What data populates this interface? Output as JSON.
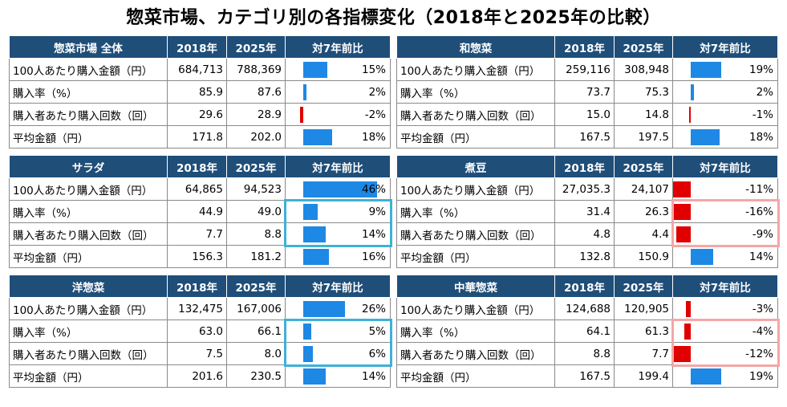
{
  "title": "惣菜市場、カテゴリ別の各指標変化（2018年と2025年の比較）",
  "colors": {
    "header_bg": "#1f4e79",
    "positive_bar": "#1e88e5",
    "negative_bar": "#e00000",
    "highlight_blue": "#3fb1d6",
    "highlight_red": "#f4a6a6"
  },
  "panels": [
    {
      "id": "total",
      "header": [
        "惣菜市場 全体",
        "2018年",
        "2025年",
        "対7年前比"
      ],
      "rows": [
        {
          "label": "100人あたり購入金額（円）",
          "v2018": "684,713",
          "v2025": "788,369",
          "change": "15%",
          "change_value": 15
        },
        {
          "label": "購入率（%）",
          "v2018": "85.9",
          "v2025": "87.6",
          "change": "2%",
          "change_value": 2
        },
        {
          "label": "購入者あたり購入回数（回）",
          "v2018": "29.6",
          "v2025": "28.9",
          "change": "-2%",
          "change_value": -2
        },
        {
          "label": "平均金額（円）",
          "v2018": "171.8",
          "v2025": "202.0",
          "change": "18%",
          "change_value": 18
        }
      ]
    },
    {
      "id": "wasozai",
      "header": [
        "和惣菜",
        "2018年",
        "2025年",
        "対7年前比"
      ],
      "rows": [
        {
          "label": "100人あたり購入金額（円）",
          "v2018": "259,116",
          "v2025": "308,948",
          "change": "19%",
          "change_value": 19
        },
        {
          "label": "購入率（%）",
          "v2018": "73.7",
          "v2025": "75.3",
          "change": "2%",
          "change_value": 2
        },
        {
          "label": "購入者あたり購入回数（回）",
          "v2018": "15.0",
          "v2025": "14.8",
          "change": "-1%",
          "change_value": -1
        },
        {
          "label": "平均金額（円）",
          "v2018": "167.5",
          "v2025": "197.5",
          "change": "18%",
          "change_value": 18
        }
      ]
    },
    {
      "id": "salad",
      "header": [
        "サラダ",
        "2018年",
        "2025年",
        "対7年前比"
      ],
      "highlight_rows": [
        1,
        2
      ],
      "highlight_color": "blue",
      "rows": [
        {
          "label": "100人あたり購入金額（円）",
          "v2018": "64,865",
          "v2025": "94,523",
          "change": "46%",
          "change_value": 46
        },
        {
          "label": "購入率（%）",
          "v2018": "44.9",
          "v2025": "49.0",
          "change": "9%",
          "change_value": 9
        },
        {
          "label": "購入者あたり購入回数（回）",
          "v2018": "7.7",
          "v2025": "8.8",
          "change": "14%",
          "change_value": 14
        },
        {
          "label": "平均金額（円）",
          "v2018": "156.3",
          "v2025": "181.2",
          "change": "16%",
          "change_value": 16
        }
      ]
    },
    {
      "id": "nimame",
      "header": [
        "煮豆",
        "2018年",
        "2025年",
        "対7年前比"
      ],
      "highlight_rows": [
        1,
        2
      ],
      "highlight_color": "red",
      "rows": [
        {
          "label": "100人あたり購入金額（円）",
          "v2018": "27,035.3",
          "v2025": "24,107",
          "change": "-11%",
          "change_value": -11
        },
        {
          "label": "購入率（%）",
          "v2018": "31.4",
          "v2025": "26.3",
          "change": "-16%",
          "change_value": -16
        },
        {
          "label": "購入者あたり購入回数（回）",
          "v2018": "4.8",
          "v2025": "4.4",
          "change": "-9%",
          "change_value": -9
        },
        {
          "label": "平均金額（円）",
          "v2018": "132.8",
          "v2025": "150.9",
          "change": "14%",
          "change_value": 14
        }
      ]
    },
    {
      "id": "yosozai",
      "header": [
        "洋惣菜",
        "2018年",
        "2025年",
        "対7年前比"
      ],
      "highlight_rows": [
        1,
        2
      ],
      "highlight_color": "blue",
      "rows": [
        {
          "label": "100人あたり購入金額（円）",
          "v2018": "132,475",
          "v2025": "167,006",
          "change": "26%",
          "change_value": 26
        },
        {
          "label": "購入率（%）",
          "v2018": "63.0",
          "v2025": "66.1",
          "change": "5%",
          "change_value": 5
        },
        {
          "label": "購入者あたり購入回数（回）",
          "v2018": "7.5",
          "v2025": "8.0",
          "change": "6%",
          "change_value": 6
        },
        {
          "label": "平均金額（円）",
          "v2018": "201.6",
          "v2025": "230.5",
          "change": "14%",
          "change_value": 14
        }
      ]
    },
    {
      "id": "chuka",
      "header": [
        "中華惣菜",
        "2018年",
        "2025年",
        "対7年前比"
      ],
      "highlight_rows": [
        1,
        2
      ],
      "highlight_color": "red",
      "rows": [
        {
          "label": "100人あたり購入金額（円）",
          "v2018": "124,688",
          "v2025": "120,905",
          "change": "-3%",
          "change_value": -3
        },
        {
          "label": "購入率（%）",
          "v2018": "64.1",
          "v2025": "61.3",
          "change": "-4%",
          "change_value": -4
        },
        {
          "label": "購入者あたり購入回数（回）",
          "v2018": "8.8",
          "v2025": "7.7",
          "change": "-12%",
          "change_value": -12
        },
        {
          "label": "平均金額（円）",
          "v2018": "167.5",
          "v2025": "199.4",
          "change": "19%",
          "change_value": 19
        }
      ]
    }
  ]
}
